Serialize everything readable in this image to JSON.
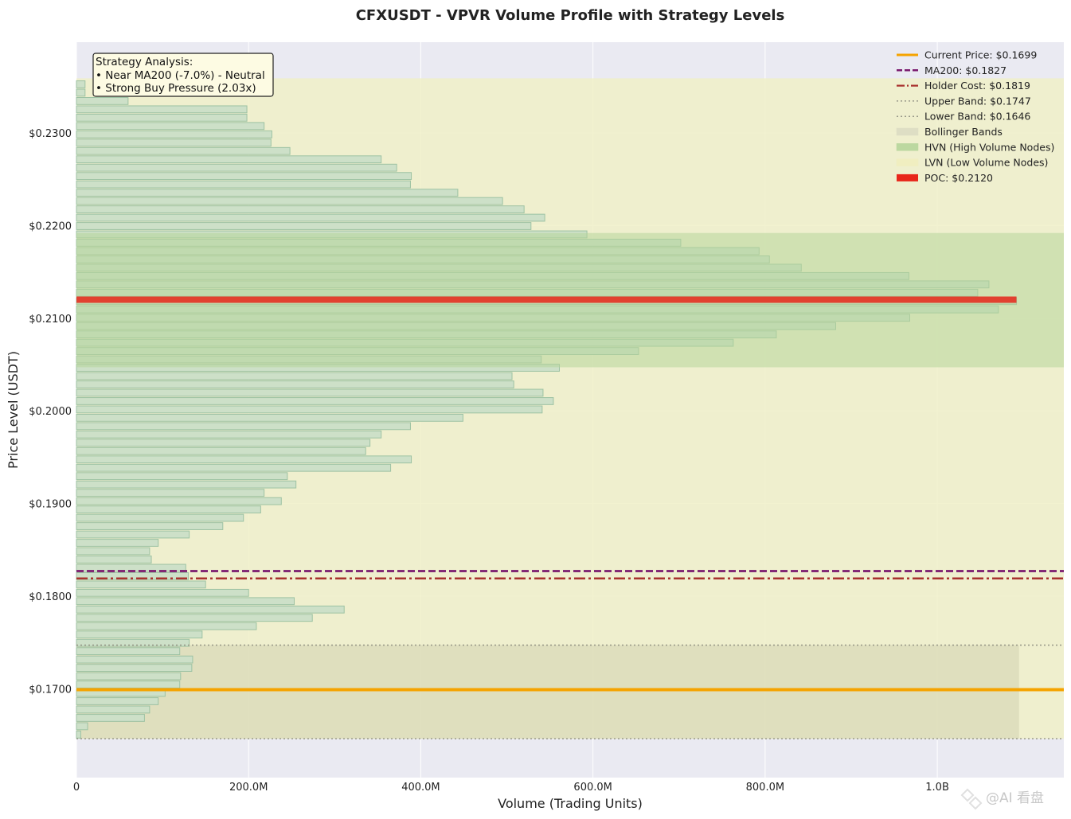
{
  "chart_data": {
    "type": "bar",
    "orientation": "horizontal",
    "title": "CFXUSDT - VPVR Volume Profile with Strategy Levels",
    "xlabel": "Volume (Trading Units)",
    "ylabel": "Price Level (USDT)",
    "xlim": [
      0,
      1147000000
    ],
    "ylim": [
      0.1604,
      0.2398
    ],
    "x_ticks": [
      {
        "value": 0,
        "label": "0"
      },
      {
        "value": 200000000,
        "label": "200.0M"
      },
      {
        "value": 400000000,
        "label": "400.0M"
      },
      {
        "value": 600000000,
        "label": "600.0M"
      },
      {
        "value": 800000000,
        "label": "800.0M"
      },
      {
        "value": 1000000000,
        "label": "1.0B"
      }
    ],
    "y_ticks": [
      {
        "value": 0.17,
        "label": "$0.1700"
      },
      {
        "value": 0.18,
        "label": "$0.1800"
      },
      {
        "value": 0.19,
        "label": "$0.1900"
      },
      {
        "value": 0.2,
        "label": "$0.2000"
      },
      {
        "value": 0.21,
        "label": "$0.2100"
      },
      {
        "value": 0.22,
        "label": "$0.2200"
      },
      {
        "value": 0.23,
        "label": "$0.2300"
      }
    ],
    "grid": true,
    "bin_size": 0.0009,
    "price_min": 0.1646,
    "bins": [
      {
        "price": 0.16505,
        "volume": 5000000
      },
      {
        "price": 0.16595,
        "volume": 13000000
      },
      {
        "price": 0.16685,
        "volume": 79000000
      },
      {
        "price": 0.16775,
        "volume": 85000000
      },
      {
        "price": 0.16865,
        "volume": 95000000
      },
      {
        "price": 0.16955,
        "volume": 103000000
      },
      {
        "price": 0.17045,
        "volume": 120000000
      },
      {
        "price": 0.17135,
        "volume": 121000000
      },
      {
        "price": 0.17225,
        "volume": 134000000
      },
      {
        "price": 0.17315,
        "volume": 135000000
      },
      {
        "price": 0.17405,
        "volume": 120000000
      },
      {
        "price": 0.17495,
        "volume": 131000000
      },
      {
        "price": 0.17585,
        "volume": 146000000
      },
      {
        "price": 0.17675,
        "volume": 209000000
      },
      {
        "price": 0.17765,
        "volume": 274000000
      },
      {
        "price": 0.17855,
        "volume": 311000000
      },
      {
        "price": 0.17945,
        "volume": 253000000
      },
      {
        "price": 0.18035,
        "volume": 200000000
      },
      {
        "price": 0.18125,
        "volume": 150000000
      },
      {
        "price": 0.18215,
        "volume": 130000000
      },
      {
        "price": 0.18305,
        "volume": 127000000
      },
      {
        "price": 0.18395,
        "volume": 87000000
      },
      {
        "price": 0.18485,
        "volume": 85000000
      },
      {
        "price": 0.18575,
        "volume": 95000000
      },
      {
        "price": 0.18665,
        "volume": 131000000
      },
      {
        "price": 0.18755,
        "volume": 170000000
      },
      {
        "price": 0.18845,
        "volume": 194000000
      },
      {
        "price": 0.18935,
        "volume": 214000000
      },
      {
        "price": 0.19025,
        "volume": 238000000
      },
      {
        "price": 0.19115,
        "volume": 218000000
      },
      {
        "price": 0.19205,
        "volume": 255000000
      },
      {
        "price": 0.19295,
        "volume": 245000000
      },
      {
        "price": 0.19385,
        "volume": 365000000
      },
      {
        "price": 0.19475,
        "volume": 389000000
      },
      {
        "price": 0.19565,
        "volume": 336000000
      },
      {
        "price": 0.19655,
        "volume": 341000000
      },
      {
        "price": 0.19745,
        "volume": 354000000
      },
      {
        "price": 0.19835,
        "volume": 388000000
      },
      {
        "price": 0.19925,
        "volume": 449000000
      },
      {
        "price": 0.20015,
        "volume": 541000000
      },
      {
        "price": 0.20105,
        "volume": 554000000
      },
      {
        "price": 0.20195,
        "volume": 542000000
      },
      {
        "price": 0.20285,
        "volume": 508000000
      },
      {
        "price": 0.20375,
        "volume": 506000000
      },
      {
        "price": 0.20465,
        "volume": 561000000
      },
      {
        "price": 0.20555,
        "volume": 540000000
      },
      {
        "price": 0.20645,
        "volume": 653000000
      },
      {
        "price": 0.20735,
        "volume": 763000000
      },
      {
        "price": 0.20825,
        "volume": 813000000
      },
      {
        "price": 0.20915,
        "volume": 882000000
      },
      {
        "price": 0.21005,
        "volume": 968000000
      },
      {
        "price": 0.21095,
        "volume": 1071000000
      },
      {
        "price": 0.21185,
        "volume": 1092000000
      },
      {
        "price": 0.21275,
        "volume": 1047000000
      },
      {
        "price": 0.21365,
        "volume": 1060000000
      },
      {
        "price": 0.21455,
        "volume": 967000000
      },
      {
        "price": 0.21545,
        "volume": 842000000
      },
      {
        "price": 0.21635,
        "volume": 805000000
      },
      {
        "price": 0.21725,
        "volume": 793000000
      },
      {
        "price": 0.21815,
        "volume": 702000000
      },
      {
        "price": 0.21905,
        "volume": 593000000
      },
      {
        "price": 0.21995,
        "volume": 528000000
      },
      {
        "price": 0.22085,
        "volume": 544000000
      },
      {
        "price": 0.22175,
        "volume": 520000000
      },
      {
        "price": 0.22265,
        "volume": 495000000
      },
      {
        "price": 0.22355,
        "volume": 443000000
      },
      {
        "price": 0.22445,
        "volume": 388000000
      },
      {
        "price": 0.22535,
        "volume": 389000000
      },
      {
        "price": 0.22625,
        "volume": 372000000
      },
      {
        "price": 0.22715,
        "volume": 354000000
      },
      {
        "price": 0.22805,
        "volume": 248000000
      },
      {
        "price": 0.22895,
        "volume": 226000000
      },
      {
        "price": 0.22985,
        "volume": 227000000
      },
      {
        "price": 0.23075,
        "volume": 218000000
      },
      {
        "price": 0.23165,
        "volume": 198000000
      },
      {
        "price": 0.23255,
        "volume": 198000000
      },
      {
        "price": 0.23345,
        "volume": 60000000
      },
      {
        "price": 0.23435,
        "volume": 10000000
      },
      {
        "price": 0.23525,
        "volume": 10000000
      }
    ],
    "levels": {
      "current_price": {
        "value": 0.1699,
        "label": "Current Price: $0.1699",
        "color": "#f5a300"
      },
      "ma200": {
        "value": 0.1827,
        "label": "MA200: $0.1827",
        "color": "#7a1a6e"
      },
      "holder_cost": {
        "value": 0.1819,
        "label": "Holder Cost: $0.1819",
        "color": "#a8322e"
      },
      "upper_band": {
        "value": 0.1747,
        "label": "Upper Band: $0.1747",
        "color": "#9a9a8a"
      },
      "lower_band": {
        "value": 0.1646,
        "label": "Lower Band: $0.1646",
        "color": "#9a9a8a"
      },
      "poc": {
        "value": 0.212,
        "label": "POC: $0.2120",
        "color": "#e8261a"
      }
    },
    "zones": {
      "bollinger": {
        "from": 0.1646,
        "to": 0.1747,
        "x_extent": 1095000000,
        "label": "Bollinger Bands",
        "color": "#d8d8b8"
      },
      "hvn": {
        "from": 0.2047,
        "to": 0.2192,
        "label": "HVN (High Volume Nodes)",
        "color": "#b7d59a"
      },
      "lvn": {
        "from": 0.1646,
        "to": 0.2359,
        "label": "LVN (Low Volume Nodes)",
        "color": "#f0f0c8"
      }
    },
    "legend": {
      "placement": "top-right",
      "entries": [
        {
          "key": "current_price",
          "label": "Current Price: $0.1699",
          "style": "solid",
          "color": "#f5a300"
        },
        {
          "key": "ma200",
          "label": "MA200: $0.1827",
          "style": "dashed",
          "color": "#7a1a6e"
        },
        {
          "key": "holder_cost",
          "label": "Holder Cost: $0.1819",
          "style": "dashdot",
          "color": "#a8322e"
        },
        {
          "key": "upper_band",
          "label": "Upper Band: $0.1747",
          "style": "dotted",
          "color": "#9a9a8a"
        },
        {
          "key": "lower_band",
          "label": "Lower Band: $0.1646",
          "style": "dotted",
          "color": "#9a9a8a"
        },
        {
          "key": "bollinger",
          "label": "Bollinger Bands",
          "style": "patch",
          "color": "#dedec4"
        },
        {
          "key": "hvn",
          "label": "HVN (High Volume Nodes)",
          "style": "patch",
          "color": "#bcd8a0"
        },
        {
          "key": "lvn",
          "label": "LVN (Low Volume Nodes)",
          "style": "patch",
          "color": "#f0eec0"
        },
        {
          "key": "poc",
          "label": "POC: $0.2120",
          "style": "patch-solid",
          "color": "#e8261a"
        }
      ]
    },
    "annotation": {
      "placement": "top-left",
      "lines": [
        "Strategy Analysis:",
        "• Near MA200 (-7.0%) - Neutral",
        "• Strong Buy Pressure (2.03x)"
      ]
    }
  },
  "watermark": "@AI 看盘",
  "colors": {
    "plot_bg": "#eaeaf2",
    "bar_fill": "#cde0c8",
    "bar_stroke": "#9dc2a3",
    "grid": "#ffffff"
  }
}
